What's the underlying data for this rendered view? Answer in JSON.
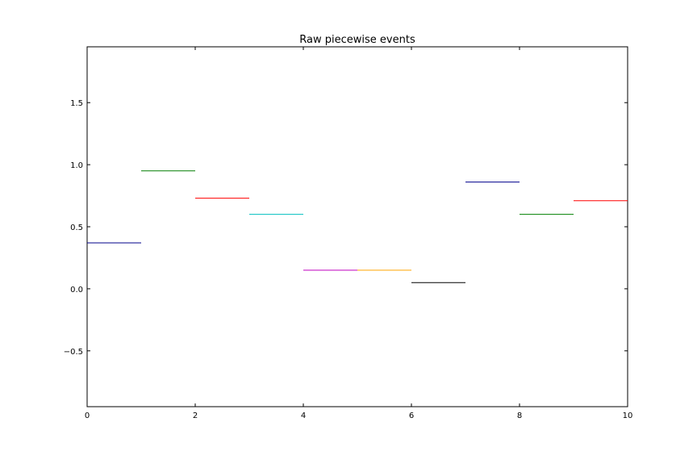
{
  "chart_data": {
    "type": "line",
    "title": "Raw piecewise events",
    "xlabel": "",
    "ylabel": "",
    "xlim": [
      0,
      10
    ],
    "ylim": [
      -0.95,
      1.95
    ],
    "xticks": [
      0,
      2,
      4,
      6,
      8,
      10
    ],
    "xtick_labels": [
      "0",
      "2",
      "4",
      "6",
      "8",
      "10"
    ],
    "yticks": [
      -0.5,
      0.0,
      0.5,
      1.0,
      1.5
    ],
    "ytick_labels": [
      "−0.5",
      "0.0",
      "0.5",
      "1.0",
      "1.5"
    ],
    "grid": false,
    "segments": [
      {
        "x": [
          0,
          1
        ],
        "y": 0.37,
        "color": "#00008b"
      },
      {
        "x": [
          1,
          2
        ],
        "y": 0.95,
        "color": "#007f00"
      },
      {
        "x": [
          2,
          3
        ],
        "y": 0.73,
        "color": "#ff0000"
      },
      {
        "x": [
          3,
          4
        ],
        "y": 0.6,
        "color": "#00bfbf"
      },
      {
        "x": [
          4,
          5
        ],
        "y": 0.15,
        "color": "#bf00bf"
      },
      {
        "x": [
          5,
          6
        ],
        "y": 0.15,
        "color": "#ffa500"
      },
      {
        "x": [
          6,
          7
        ],
        "y": 0.05,
        "color": "#000000"
      },
      {
        "x": [
          7,
          8
        ],
        "y": 0.86,
        "color": "#00008b"
      },
      {
        "x": [
          8,
          9
        ],
        "y": 0.6,
        "color": "#007f00"
      },
      {
        "x": [
          9,
          10
        ],
        "y": 0.71,
        "color": "#ff0000"
      }
    ]
  }
}
